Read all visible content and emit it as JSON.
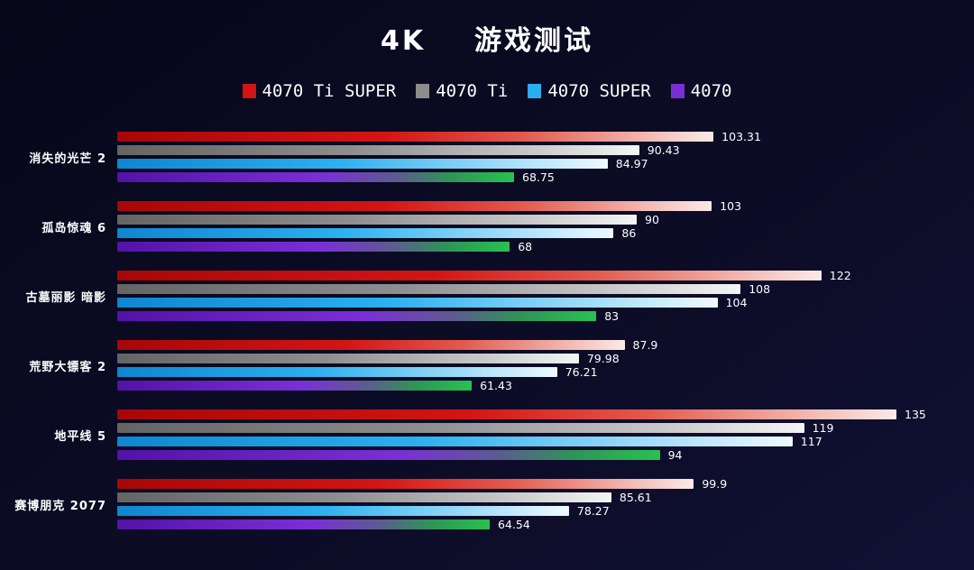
{
  "title": "4K    游戏测试",
  "chart_data": {
    "type": "bar",
    "orientation": "horizontal",
    "title": "4K 游戏测试",
    "legend_position": "top",
    "grid": false,
    "xlim": [
      0,
      140
    ],
    "value_labels": true,
    "background_color": "#0b0b22",
    "categories": [
      "消失的光芒 2",
      "孤岛惊魂 6",
      "古墓丽影 暗影",
      "荒野大镖客 2",
      "地平线 5",
      "赛博朋克 2077"
    ],
    "series": [
      {
        "name": "4070 Ti SUPER",
        "color": "#d21414",
        "values": [
          103.31,
          103,
          122,
          87.9,
          135,
          99.9
        ]
      },
      {
        "name": "4070 Ti",
        "color": "#8c8c8c",
        "values": [
          90.43,
          90,
          108,
          79.98,
          119,
          85.61
        ]
      },
      {
        "name": "4070 SUPER",
        "color": "#29aef0",
        "values": [
          84.97,
          86,
          104,
          76.21,
          117,
          78.27
        ]
      },
      {
        "name": "4070",
        "color": "#7a2fd6",
        "values": [
          68.75,
          68,
          83,
          61.43,
          94,
          64.54
        ]
      }
    ]
  }
}
